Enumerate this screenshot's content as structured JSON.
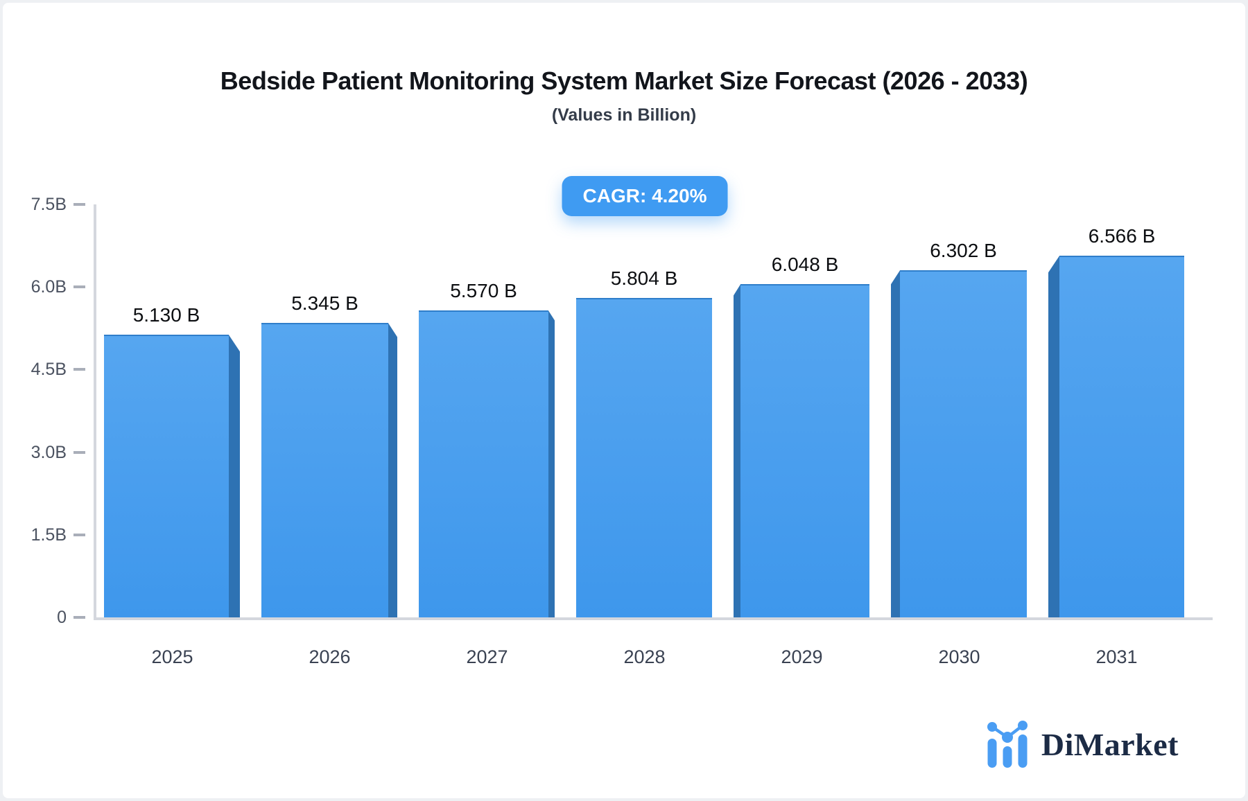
{
  "header": {
    "title": "Bedside Patient Monitoring System Market Size Forecast (2026 - 2033)",
    "subtitle": "(Values in Billion)"
  },
  "cagr_badge": {
    "label": "CAGR: 4.20%"
  },
  "brand": {
    "name": "DiMarket",
    "icon": "bar-chart-logo-icon"
  },
  "colors": {
    "bar_face": "#3f98ed",
    "bar_face_light": "#56a6f0",
    "bar_side": "#2e72b3",
    "badge_bg": "#3f9bf2",
    "axis_line": "#d4d7de",
    "tick_dash": "#a9aeb9",
    "brand_navy": "#1c2b45",
    "brand_icon_blue": "#4a9df3"
  },
  "chart_data": {
    "type": "bar",
    "title": "Bedside Patient Monitoring System Market Size Forecast (2026 - 2033)",
    "subtitle": "(Values in Billion)",
    "xlabel": "",
    "ylabel": "",
    "categories": [
      "2025",
      "2026",
      "2027",
      "2028",
      "2029",
      "2030",
      "2031"
    ],
    "values": [
      5.13,
      5.345,
      5.57,
      5.804,
      6.048,
      6.302,
      6.566
    ],
    "value_labels": [
      "5.130 B",
      "5.345 B",
      "5.570 B",
      "5.804 B",
      "6.048 B",
      "6.302 B",
      "6.566 B"
    ],
    "ylim": [
      0,
      7.5
    ],
    "y_ticks": [
      {
        "label": "7.5B",
        "value": 7.5
      },
      {
        "label": "6.0B",
        "value": 6.0
      },
      {
        "label": "4.5B",
        "value": 4.5
      },
      {
        "label": "3.0B",
        "value": 3.0
      },
      {
        "label": "1.5B",
        "value": 1.5
      },
      {
        "label": "0",
        "value": 0
      }
    ],
    "grid": false,
    "legend": "none",
    "style": "3d-extruded-bars, perspective toward center"
  }
}
